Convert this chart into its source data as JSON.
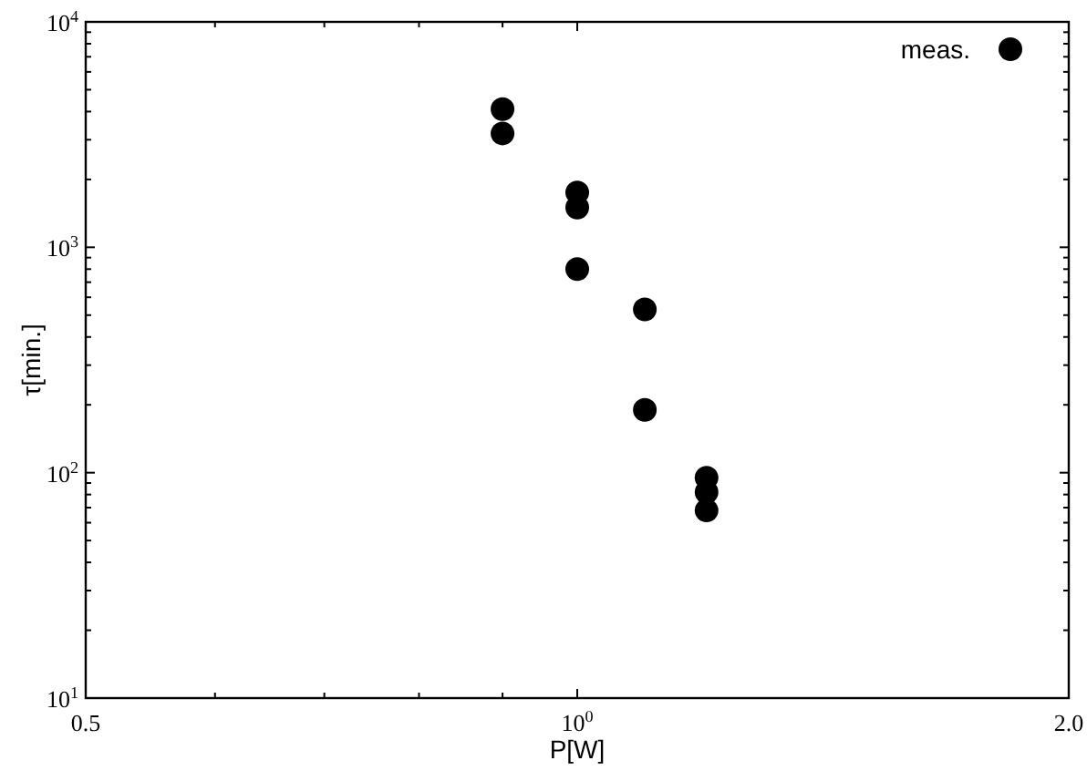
{
  "chart_data": {
    "type": "scatter",
    "xlabel": "P[W]",
    "ylabel": "τ[min.]",
    "log": "xy",
    "marker": "circle",
    "legend": "top right",
    "grid": false,
    "xlim": [
      0.5,
      2.0
    ],
    "ylim": [
      10,
      10000
    ],
    "xticks": [
      {
        "value": 0.5,
        "label": "0.5"
      },
      {
        "value": 0.6,
        "label": null
      },
      {
        "value": 0.7,
        "label": null
      },
      {
        "value": 0.8,
        "label": null
      },
      {
        "value": 0.9,
        "label": null
      },
      {
        "value": 1,
        "label": "10$^{0}$"
      },
      {
        "value": 2,
        "label": "2.0"
      }
    ],
    "yticks": [
      {
        "value": 10,
        "label": "10$^{1}$"
      },
      {
        "value": 20,
        "label": null
      },
      {
        "value": 30,
        "label": null
      },
      {
        "value": 40,
        "label": null
      },
      {
        "value": 50,
        "label": null
      },
      {
        "value": 60,
        "label": null
      },
      {
        "value": 70,
        "label": null
      },
      {
        "value": 80,
        "label": null
      },
      {
        "value": 90,
        "label": null
      },
      {
        "value": 100,
        "label": "10$^{2}$"
      },
      {
        "value": 200,
        "label": null
      },
      {
        "value": 300,
        "label": null
      },
      {
        "value": 400,
        "label": null
      },
      {
        "value": 500,
        "label": null
      },
      {
        "value": 600,
        "label": null
      },
      {
        "value": 700,
        "label": null
      },
      {
        "value": 800,
        "label": null
      },
      {
        "value": 900,
        "label": null
      },
      {
        "value": 1000,
        "label": "10$^{3}$"
      },
      {
        "value": 2000,
        "label": null
      },
      {
        "value": 3000,
        "label": null
      },
      {
        "value": 4000,
        "label": null
      },
      {
        "value": 5000,
        "label": null
      },
      {
        "value": 6000,
        "label": null
      },
      {
        "value": 7000,
        "label": null
      },
      {
        "value": 8000,
        "label": null
      },
      {
        "value": 9000,
        "label": null
      },
      {
        "value": 10000,
        "label": "10$^{4}$"
      }
    ],
    "series": [
      {
        "name": "meas.",
        "color": "#000000",
        "x": [
          0.9,
          0.9,
          1.0,
          1.0,
          1.0,
          1.1,
          1.1,
          1.2,
          1.2,
          1.2
        ],
        "values": [
          4100,
          3200,
          1750,
          1500,
          800,
          530,
          190,
          95,
          82,
          68
        ]
      }
    ]
  }
}
